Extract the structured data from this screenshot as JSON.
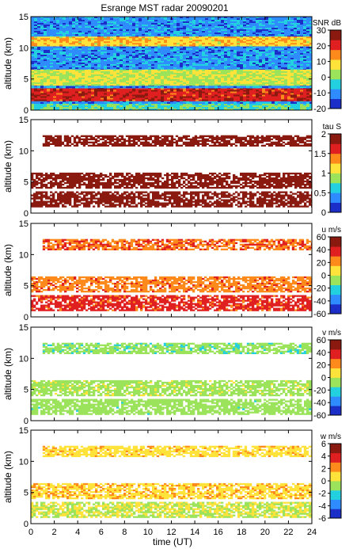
{
  "chart_data": {
    "type": "heatmap",
    "title": "Esrange MST radar 20090201",
    "xlabel": "time (UT)",
    "xlim": [
      0,
      24
    ],
    "x_ticks": [
      0,
      2,
      4,
      6,
      8,
      10,
      12,
      14,
      16,
      18,
      20,
      22,
      24
    ],
    "panels": [
      {
        "ylabel": "altitude (km)",
        "ylim": [
          0,
          15
        ],
        "y_ticks": [
          0,
          5,
          10,
          15
        ],
        "colorbar": {
          "label": "SNR dB",
          "range": [
            -20,
            30
          ],
          "ticks": [
            -20,
            -10,
            0,
            10,
            20,
            30
          ]
        },
        "colors": [
          "#1b2ec8",
          "#2f8cff",
          "#22d0e0",
          "#9be35a",
          "#ffe23a",
          "#ff8a1c",
          "#e02020",
          "#8a1a10"
        ],
        "coverage": "full",
        "layers": [
          {
            "name": "background",
            "x": [
              0,
              24
            ],
            "y": [
              0.5,
              15
            ],
            "value": -10
          },
          {
            "name": "upper layer",
            "x": [
              0,
              24
            ],
            "y": [
              10.5,
              11.8
            ],
            "value": 10
          },
          {
            "name": "mid band",
            "x": [
              0,
              24
            ],
            "y": [
              4,
              6.5
            ],
            "value": 5
          },
          {
            "name": "low band",
            "x": [
              0,
              24
            ],
            "y": [
              1.5,
              3.5
            ],
            "value": 22
          },
          {
            "name": "near ground",
            "x": [
              0,
              24
            ],
            "y": [
              0,
              1
            ],
            "value": -2
          }
        ]
      },
      {
        "ylabel": "altitude (km)",
        "ylim": [
          0,
          15
        ],
        "y_ticks": [
          0,
          5,
          10,
          15
        ],
        "colorbar": {
          "label": "tau S",
          "range": [
            0,
            2
          ],
          "ticks": [
            0,
            0.5,
            1,
            1.5,
            2
          ]
        },
        "colors": [
          "#1b2ec8",
          "#2f8cff",
          "#22d0e0",
          "#9be35a",
          "#ffe23a",
          "#ff8a1c",
          "#e02020",
          "#8a1a10"
        ],
        "coverage": "sparse",
        "layers": [
          {
            "name": "upper layer",
            "x": [
              1,
              24
            ],
            "y": [
              10.8,
              12.5
            ],
            "value": 1.9
          },
          {
            "name": "mid band",
            "x": [
              0,
              24
            ],
            "y": [
              4,
              6.5
            ],
            "value": 1.9
          },
          {
            "name": "low band",
            "x": [
              0,
              24
            ],
            "y": [
              1,
              3.5
            ],
            "value": 1.9
          }
        ]
      },
      {
        "ylabel": "altitude (km)",
        "ylim": [
          0,
          15
        ],
        "y_ticks": [
          0,
          5,
          10,
          15
        ],
        "colorbar": {
          "label": "u m/s",
          "range": [
            -60,
            60
          ],
          "ticks": [
            -60,
            -40,
            -20,
            0,
            20,
            40,
            60
          ]
        },
        "colors": [
          "#1b2ec8",
          "#2f8cff",
          "#22d0e0",
          "#9be35a",
          "#ffe23a",
          "#ff8a1c",
          "#e02020",
          "#8a1a10"
        ],
        "coverage": "sparse",
        "layers": [
          {
            "name": "upper layer",
            "x": [
              1,
              24
            ],
            "y": [
              10.8,
              12.5
            ],
            "value": 28
          },
          {
            "name": "mid band",
            "x": [
              0,
              24
            ],
            "y": [
              4,
              6.5
            ],
            "value": 25
          },
          {
            "name": "low band",
            "x": [
              0,
              24
            ],
            "y": [
              1,
              3.5
            ],
            "value": 35
          }
        ]
      },
      {
        "ylabel": "altitude (km)",
        "ylim": [
          0,
          15
        ],
        "y_ticks": [
          0,
          5,
          10,
          15
        ],
        "colorbar": {
          "label": "v m/s",
          "range": [
            -60,
            60
          ],
          "ticks": [
            -60,
            -40,
            -20,
            0,
            20,
            40,
            60
          ]
        },
        "colors": [
          "#1b2ec8",
          "#2f8cff",
          "#22d0e0",
          "#9be35a",
          "#ffe23a",
          "#ff8a1c",
          "#e02020",
          "#8a1a10"
        ],
        "coverage": "sparse",
        "layers": [
          {
            "name": "upper layer",
            "x": [
              1,
              24
            ],
            "y": [
              10.8,
              12.5
            ],
            "value": -10
          },
          {
            "name": "mid band",
            "x": [
              0,
              24
            ],
            "y": [
              4,
              6.5
            ],
            "value": -5
          },
          {
            "name": "low band",
            "x": [
              0,
              24
            ],
            "y": [
              1,
              3.5
            ],
            "value": -8
          }
        ]
      },
      {
        "ylabel": "altitude (km)",
        "ylim": [
          0,
          15
        ],
        "y_ticks": [
          0,
          5,
          10,
          15
        ],
        "colorbar": {
          "label": "w m/s",
          "range": [
            -6,
            6
          ],
          "ticks": [
            -6,
            -4,
            -2,
            0,
            2,
            4,
            6
          ]
        },
        "colors": [
          "#1b2ec8",
          "#2f8cff",
          "#22d0e0",
          "#9be35a",
          "#ffe23a",
          "#ff8a1c",
          "#e02020",
          "#8a1a10"
        ],
        "coverage": "sparse",
        "layers": [
          {
            "name": "upper layer",
            "x": [
              1,
              24
            ],
            "y": [
              10.8,
              12.5
            ],
            "value": 1
          },
          {
            "name": "mid band",
            "x": [
              0,
              24
            ],
            "y": [
              4,
              6.5
            ],
            "value": 1.2
          },
          {
            "name": "low band",
            "x": [
              0,
              24
            ],
            "y": [
              1,
              3.5
            ],
            "value": 0
          }
        ]
      }
    ]
  }
}
